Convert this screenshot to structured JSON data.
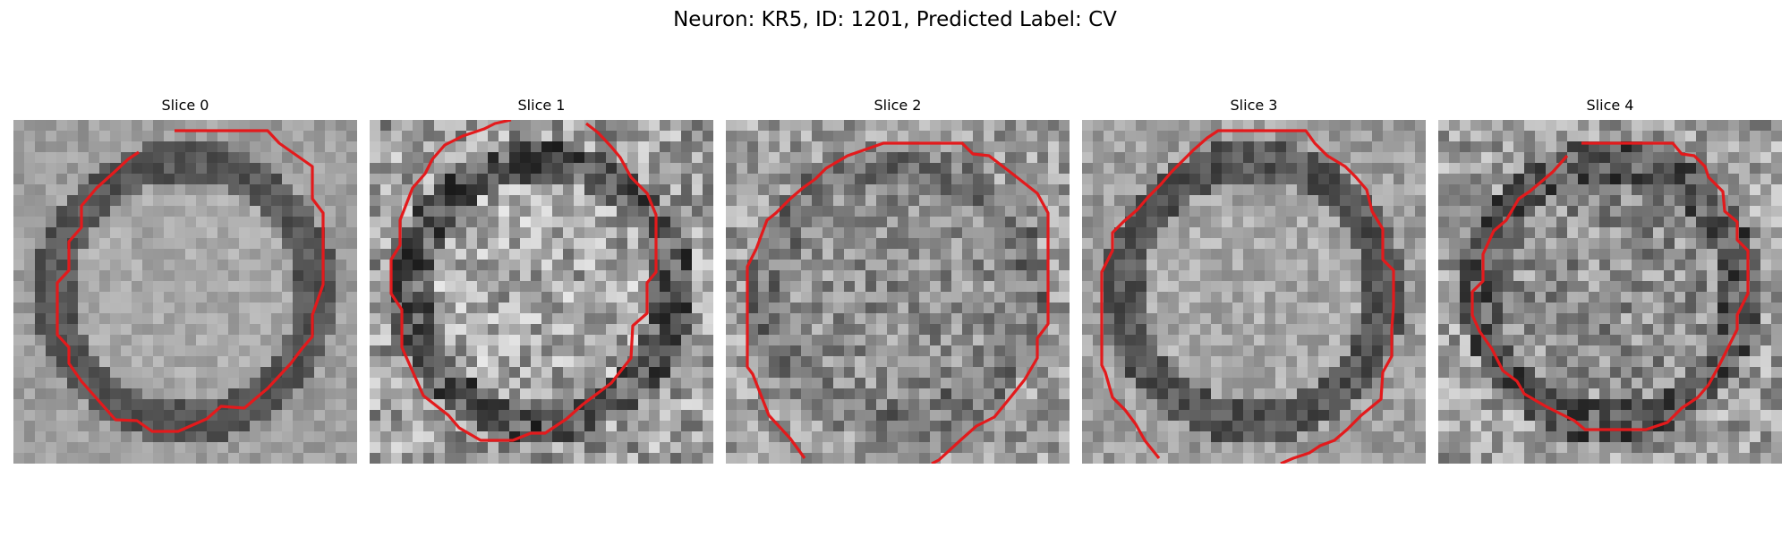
{
  "figure": {
    "title": "Neuron: KR5, ID: 1201, Predicted Label: CV",
    "contour_color": "#e31a1c",
    "colormap": "gray"
  },
  "panels": [
    {
      "title": "Slice 0",
      "noise": 0.09,
      "center": "bright",
      "ring": "dark"
    },
    {
      "title": "Slice 1",
      "noise": 0.25,
      "center": "bright",
      "ring": "dark"
    },
    {
      "title": "Slice 2",
      "noise": 0.2,
      "center": "mid",
      "ring": "mid"
    },
    {
      "title": "Slice 3",
      "noise": 0.13,
      "center": "bright",
      "ring": "dark"
    },
    {
      "title": "Slice 4",
      "noise": 0.22,
      "center": "mid",
      "ring": "dark"
    }
  ]
}
